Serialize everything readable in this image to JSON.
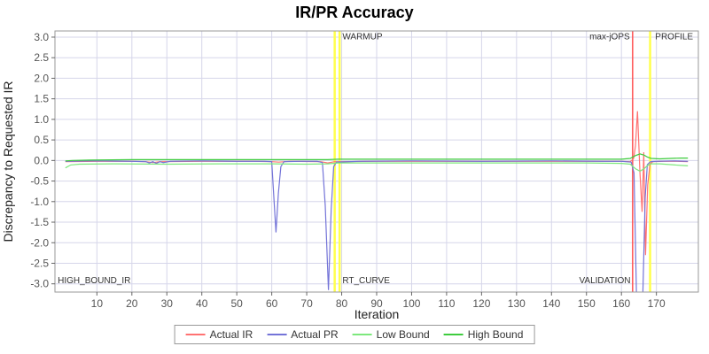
{
  "title": "IR/PR Accuracy",
  "chart_data": {
    "type": "line",
    "title": "IR/PR Accuracy",
    "xlabel": "Iteration",
    "ylabel": "Discrepancy to Requested IR",
    "xlim": [
      -2,
      182
    ],
    "ylim": [
      -3.2,
      3.15
    ],
    "grid": true,
    "legend_position": "bottom",
    "colors": {
      "grid": "#d6d6ea",
      "plot_border": "#999999",
      "background": "#ffffff"
    },
    "x_ticks": [
      {
        "v": 10,
        "label": "10"
      },
      {
        "v": 20,
        "label": "20"
      },
      {
        "v": 30,
        "label": "30"
      },
      {
        "v": 40,
        "label": "40"
      },
      {
        "v": 50,
        "label": "50"
      },
      {
        "v": 60,
        "label": "60"
      },
      {
        "v": 70,
        "label": "70"
      },
      {
        "v": 80,
        "label": "80"
      },
      {
        "v": 90,
        "label": "90"
      },
      {
        "v": 100,
        "label": "100"
      },
      {
        "v": 110,
        "label": "110"
      },
      {
        "v": 120,
        "label": "120"
      },
      {
        "v": 130,
        "label": "130"
      },
      {
        "v": 140,
        "label": "140"
      },
      {
        "v": 150,
        "label": "150"
      },
      {
        "v": 160,
        "label": "160"
      },
      {
        "v": 170,
        "label": "170"
      }
    ],
    "y_ticks": [
      {
        "v": 3.0,
        "label": "3.0"
      },
      {
        "v": 2.5,
        "label": "2.5"
      },
      {
        "v": 2.0,
        "label": "2.0"
      },
      {
        "v": 1.5,
        "label": "1.5"
      },
      {
        "v": 1.0,
        "label": "1.0"
      },
      {
        "v": 0.5,
        "label": "0.5"
      },
      {
        "v": 0.0,
        "label": "0.0"
      },
      {
        "v": -0.5,
        "label": "-0.5"
      },
      {
        "v": -1.0,
        "label": "-1.0"
      },
      {
        "v": -1.5,
        "label": "-1.5"
      },
      {
        "v": -2.0,
        "label": "-2.0"
      },
      {
        "v": -2.5,
        "label": "-2.5"
      },
      {
        "v": -3.0,
        "label": "-3.0"
      }
    ],
    "markers": [
      {
        "name": "warmup-band-left",
        "x": 78.0,
        "width": 2.5,
        "color": "#ffff4d"
      },
      {
        "name": "warmup-band-right",
        "x": 79.4,
        "width": 2.5,
        "color": "#ffff4d"
      },
      {
        "name": "max-jops-line",
        "x": 163.2,
        "width": 1.5,
        "color": "#ff5252"
      },
      {
        "name": "profile-start-line",
        "x": 168.2,
        "width": 2.5,
        "color": "#ffff4d"
      }
    ],
    "annotations": [
      {
        "text": "WARMUP",
        "x": 80.2,
        "y": 2.95,
        "anchor": "start"
      },
      {
        "text": "max-jOPS",
        "x": 162.4,
        "y": 2.95,
        "anchor": "end"
      },
      {
        "text": "PROFILE",
        "x": 180.5,
        "y": 2.95,
        "anchor": "end"
      },
      {
        "text": "HIGH_BOUND_IR",
        "x": -1.2,
        "y": -2.98,
        "anchor": "start"
      },
      {
        "text": "RT_CURVE",
        "x": 80.2,
        "y": -2.98,
        "anchor": "start"
      },
      {
        "text": "VALIDATION",
        "x": 162.6,
        "y": -2.98,
        "anchor": "end"
      }
    ],
    "series": [
      {
        "name": "Actual IR",
        "color": "#ff7272",
        "points": [
          [
            1,
            -0.03
          ],
          [
            10,
            -0.02
          ],
          [
            20,
            -0.02
          ],
          [
            24,
            -0.03
          ],
          [
            26,
            -0.05
          ],
          [
            28,
            -0.03
          ],
          [
            40,
            -0.02
          ],
          [
            55,
            -0.02
          ],
          [
            60,
            -0.03
          ],
          [
            62,
            -0.04
          ],
          [
            65,
            -0.02
          ],
          [
            74,
            -0.03
          ],
          [
            76,
            -0.06
          ],
          [
            78,
            -0.03
          ],
          [
            90,
            -0.02
          ],
          [
            110,
            -0.02
          ],
          [
            130,
            -0.02
          ],
          [
            145,
            -0.02
          ],
          [
            155,
            -0.02
          ],
          [
            160,
            -0.02
          ],
          [
            162.5,
            -0.03
          ],
          [
            163.5,
            0.05
          ],
          [
            164,
            0.35
          ],
          [
            164.6,
            1.2
          ],
          [
            165.3,
            -0.3
          ],
          [
            165.9,
            -1.25
          ],
          [
            166.4,
            0.2
          ],
          [
            166.9,
            -2.3
          ],
          [
            167.5,
            -0.6
          ],
          [
            168.2,
            -0.08
          ],
          [
            169,
            -0.03
          ],
          [
            172,
            -0.02
          ],
          [
            176,
            -0.02
          ],
          [
            179,
            -0.03
          ]
        ]
      },
      {
        "name": "Actual PR",
        "color": "#7474d8",
        "points": [
          [
            1,
            -0.02
          ],
          [
            10,
            -0.01
          ],
          [
            20,
            -0.02
          ],
          [
            24,
            -0.03
          ],
          [
            25,
            -0.06
          ],
          [
            26,
            -0.03
          ],
          [
            27,
            -0.07
          ],
          [
            28,
            -0.03
          ],
          [
            29,
            -0.05
          ],
          [
            31,
            -0.02
          ],
          [
            40,
            -0.01
          ],
          [
            50,
            -0.02
          ],
          [
            58,
            -0.02
          ],
          [
            60,
            -0.03
          ],
          [
            60.6,
            -0.9
          ],
          [
            61.2,
            -1.75
          ],
          [
            61.9,
            -0.8
          ],
          [
            62.6,
            -0.15
          ],
          [
            63.5,
            -0.03
          ],
          [
            68,
            -0.02
          ],
          [
            73,
            -0.02
          ],
          [
            74.5,
            -0.05
          ],
          [
            75.3,
            -1.1
          ],
          [
            76.2,
            -3.15
          ],
          [
            77,
            -1.2
          ],
          [
            77.7,
            -0.15
          ],
          [
            78.5,
            -0.04
          ],
          [
            85,
            -0.02
          ],
          [
            100,
            -0.01
          ],
          [
            120,
            -0.02
          ],
          [
            140,
            -0.01
          ],
          [
            155,
            -0.02
          ],
          [
            160,
            -0.02
          ],
          [
            162.8,
            -0.04
          ],
          [
            163.6,
            -0.3
          ],
          [
            164.3,
            -3.3
          ],
          [
            166.1,
            -3.3
          ],
          [
            166.8,
            -0.9
          ],
          [
            167.4,
            -0.1
          ],
          [
            168.3,
            -0.03
          ],
          [
            170,
            -0.02
          ],
          [
            175,
            -0.01
          ],
          [
            179,
            -0.02
          ]
        ]
      },
      {
        "name": "Low Bound",
        "color": "#7de87d",
        "points": [
          [
            1,
            -0.18
          ],
          [
            2.5,
            -0.11
          ],
          [
            5,
            -0.09
          ],
          [
            15,
            -0.08
          ],
          [
            30,
            -0.09
          ],
          [
            45,
            -0.08
          ],
          [
            60,
            -0.08
          ],
          [
            70,
            -0.09
          ],
          [
            76,
            -0.08
          ],
          [
            79,
            -0.06
          ],
          [
            90,
            -0.06
          ],
          [
            110,
            -0.06
          ],
          [
            130,
            -0.06
          ],
          [
            150,
            -0.06
          ],
          [
            160,
            -0.07
          ],
          [
            162.5,
            -0.09
          ],
          [
            164,
            -0.2
          ],
          [
            165.3,
            -0.26
          ],
          [
            166.5,
            -0.2
          ],
          [
            167.5,
            -0.12
          ],
          [
            168.5,
            -0.08
          ],
          [
            171,
            -0.08
          ],
          [
            174,
            -0.1
          ],
          [
            177,
            -0.12
          ],
          [
            179,
            -0.13
          ]
        ]
      },
      {
        "name": "High Bound",
        "color": "#3ecc3e",
        "points": [
          [
            1,
            -0.01
          ],
          [
            3,
            0
          ],
          [
            8,
            0.01
          ],
          [
            20,
            0.02
          ],
          [
            35,
            0.02
          ],
          [
            50,
            0.02
          ],
          [
            65,
            0.02
          ],
          [
            76,
            0.02
          ],
          [
            79,
            0.03
          ],
          [
            95,
            0.03
          ],
          [
            115,
            0.03
          ],
          [
            135,
            0.03
          ],
          [
            150,
            0.03
          ],
          [
            160,
            0.03
          ],
          [
            162.5,
            0.05
          ],
          [
            164,
            0.12
          ],
          [
            165.3,
            0.16
          ],
          [
            166.5,
            0.13
          ],
          [
            167.5,
            0.08
          ],
          [
            168.5,
            0.05
          ],
          [
            171,
            0.04
          ],
          [
            174,
            0.05
          ],
          [
            177,
            0.06
          ],
          [
            179,
            0.06
          ]
        ]
      }
    ]
  }
}
